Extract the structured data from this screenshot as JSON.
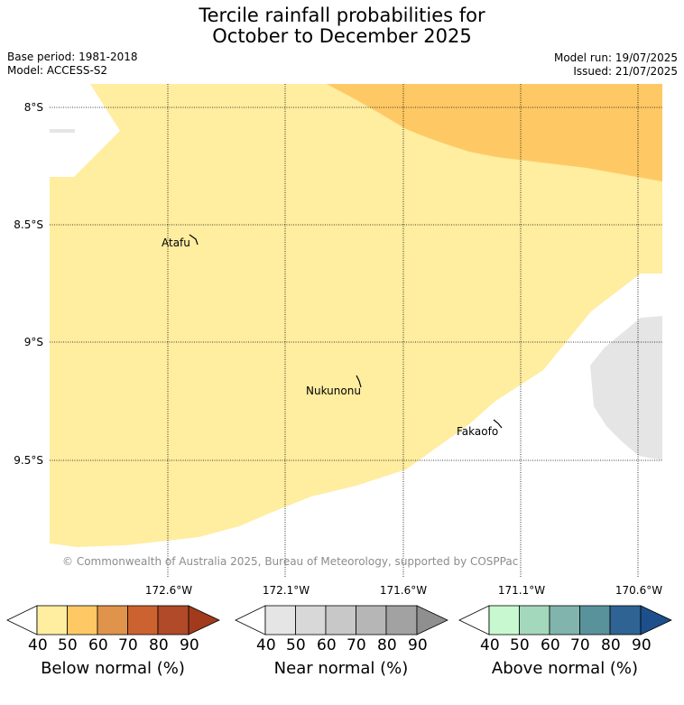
{
  "title": {
    "line1": "Tercile rainfall probabilities for",
    "line2": "October to December 2025"
  },
  "meta": {
    "base_period": "Base period: 1981-2018",
    "model": "Model: ACCESS-S2",
    "model_run": "Model run: 19/07/2025",
    "issued": "Issued: 21/07/2025"
  },
  "map": {
    "lat_labels": [
      "8°S",
      "8.5°S",
      "9°S",
      "9.5°S"
    ],
    "lon_labels": [
      "172.6°W",
      "172.1°W",
      "171.6°W",
      "171.1°W",
      "170.6°W"
    ],
    "places": [
      "Atafu",
      "Nukunonu",
      "Fakaofo"
    ],
    "copyright": "© Commonwealth of Australia 2025, Bureau of Meteorology, supported by COSPPac",
    "colors": {
      "below_40_50": "#ffeda0",
      "below_50_60": "#fec965",
      "no_data": "#e5e5e5"
    }
  },
  "colorbars": [
    {
      "title": "Below normal (%)",
      "ticks": [
        "40",
        "50",
        "60",
        "70",
        "80",
        "90"
      ],
      "colors": [
        "#ffeda0",
        "#fec965",
        "#e0934a",
        "#cb622f",
        "#b04a28",
        "#a13b1c"
      ]
    },
    {
      "title": "Near normal (%)",
      "ticks": [
        "40",
        "50",
        "60",
        "70",
        "80",
        "90"
      ],
      "colors": [
        "#e5e5e5",
        "#d8d8d8",
        "#c8c8c8",
        "#b6b6b6",
        "#a2a2a2",
        "#8f8f8f"
      ]
    },
    {
      "title": "Above normal (%)",
      "ticks": [
        "40",
        "50",
        "60",
        "70",
        "80",
        "90"
      ],
      "colors": [
        "#c8f8d0",
        "#a4d8bc",
        "#80b4ac",
        "#5a929c",
        "#2e6394",
        "#1c4f8c"
      ]
    }
  ]
}
